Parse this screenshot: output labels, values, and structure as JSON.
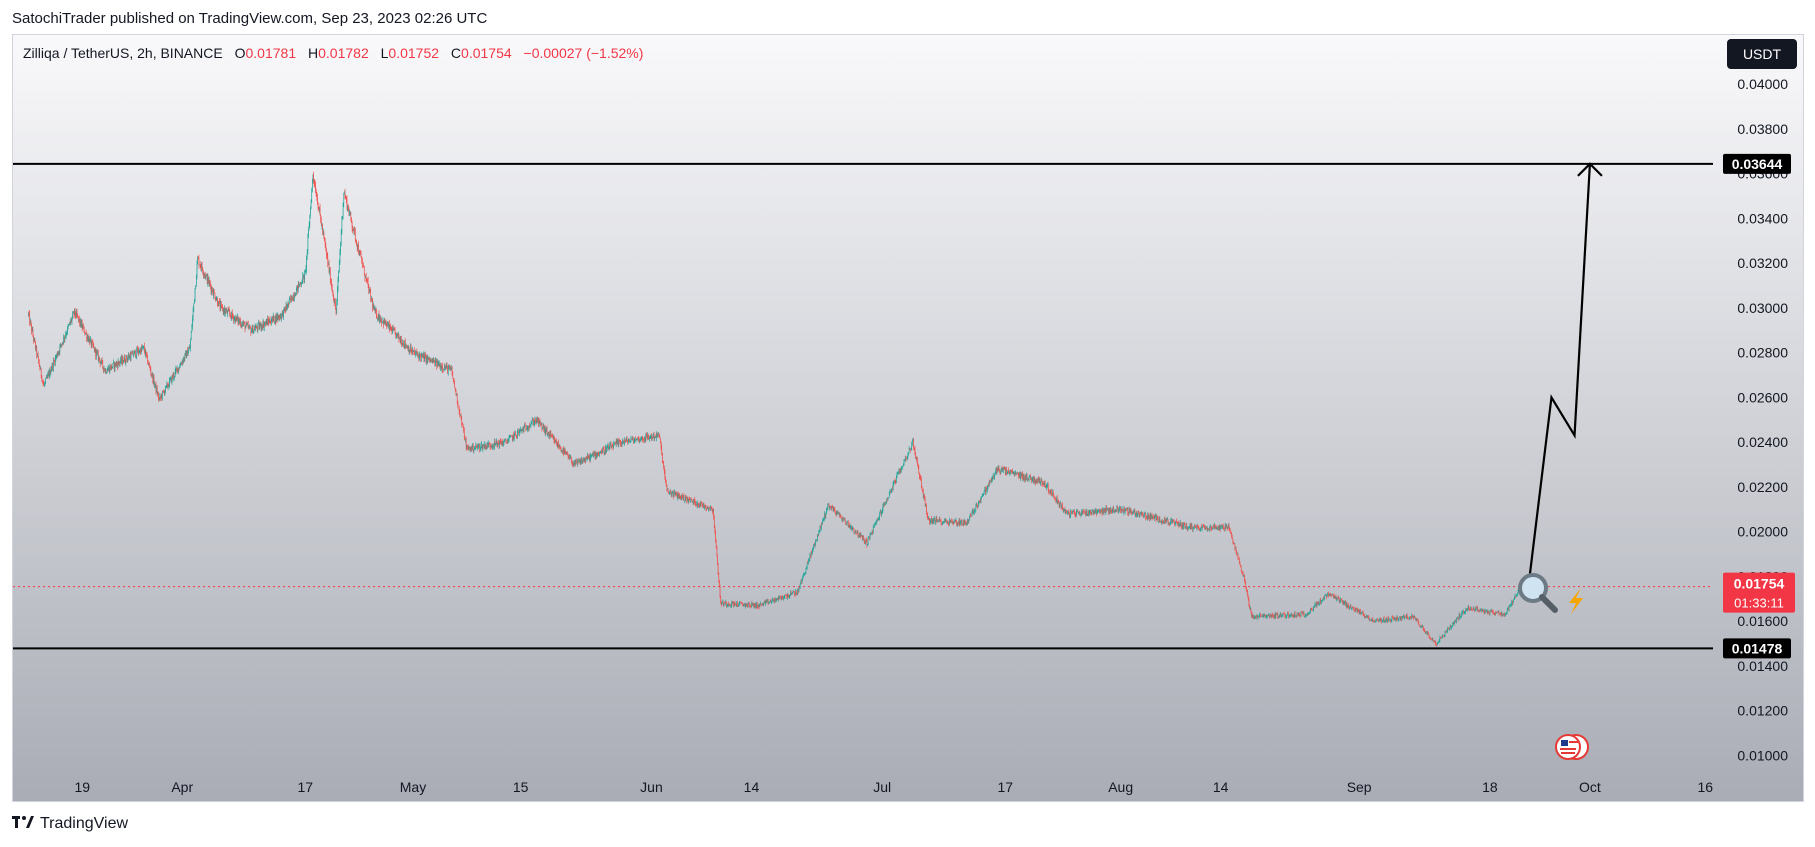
{
  "header": {
    "published_line": "SatochiTrader published on TradingView.com, Sep 23, 2023 02:26 UTC"
  },
  "legend": {
    "symbol": "Zilliqa / TetherUS, 2h, BINANCE",
    "open_label": "O",
    "open": "0.01781",
    "high_label": "H",
    "high": "0.01782",
    "low_label": "L",
    "low": "0.01752",
    "close_label": "C",
    "close": "0.01754",
    "change": "−0.00027 (−1.52%)"
  },
  "currency_button": "USDT",
  "colors": {
    "up": "#26a69a",
    "down": "#ef5350",
    "accent": "#f23645",
    "level_line": "#000000",
    "bg_top": "#f9f9fb",
    "bg_bottom": "#a9acb5"
  },
  "icons": [
    "magnifier-icon",
    "lightning-icon",
    "us-flag-icon"
  ],
  "chart_data": {
    "type": "candlestick",
    "title": "Zilliqa / TetherUS, 2h, BINANCE",
    "ylim": [
      0.0093,
      0.0422
    ],
    "y_ticks": [
      "0.01000",
      "0.01200",
      "0.01400",
      "0.01600",
      "0.01800",
      "0.02000",
      "0.02200",
      "0.02400",
      "0.02600",
      "0.02800",
      "0.03000",
      "0.03200",
      "0.03400",
      "0.03600",
      "0.03800",
      "0.04000"
    ],
    "x_ticks": [
      "19",
      "Apr",
      "17",
      "May",
      "15",
      "Jun",
      "14",
      "Jul",
      "17",
      "Aug",
      "14",
      "Sep",
      "18",
      "Oct",
      "16"
    ],
    "grid": false,
    "price_path": [
      [
        "2023-03-12",
        0.0297
      ],
      [
        "2023-03-14",
        0.0265
      ],
      [
        "2023-03-18",
        0.0298
      ],
      [
        "2023-03-22",
        0.0272
      ],
      [
        "2023-03-27",
        0.0282
      ],
      [
        "2023-03-29",
        0.0259
      ],
      [
        "2023-04-02",
        0.0282
      ],
      [
        "2023-04-03",
        0.0322
      ],
      [
        "2023-04-06",
        0.03
      ],
      [
        "2023-04-10",
        0.029
      ],
      [
        "2023-04-14",
        0.0297
      ],
      [
        "2023-04-17",
        0.0315
      ],
      [
        "2023-04-18",
        0.036
      ],
      [
        "2023-04-21",
        0.0298
      ],
      [
        "2023-04-22",
        0.0352
      ],
      [
        "2023-04-26",
        0.0298
      ],
      [
        "2023-05-01",
        0.028
      ],
      [
        "2023-05-06",
        0.0272
      ],
      [
        "2023-05-08",
        0.0237
      ],
      [
        "2023-05-13",
        0.024
      ],
      [
        "2023-05-17",
        0.025
      ],
      [
        "2023-05-22",
        0.023
      ],
      [
        "2023-05-28",
        0.024
      ],
      [
        "2023-06-02",
        0.0243
      ],
      [
        "2023-06-03",
        0.0218
      ],
      [
        "2023-06-09",
        0.021
      ],
      [
        "2023-06-10",
        0.0168
      ],
      [
        "2023-06-15",
        0.0167
      ],
      [
        "2023-06-20",
        0.0173
      ],
      [
        "2023-06-24",
        0.0212
      ],
      [
        "2023-06-29",
        0.0195
      ],
      [
        "2023-07-03",
        0.0225
      ],
      [
        "2023-07-05",
        0.024
      ],
      [
        "2023-07-07",
        0.0205
      ],
      [
        "2023-07-12",
        0.0204
      ],
      [
        "2023-07-16",
        0.0228
      ],
      [
        "2023-07-22",
        0.0222
      ],
      [
        "2023-07-25",
        0.0208
      ],
      [
        "2023-08-01",
        0.021
      ],
      [
        "2023-08-10",
        0.0202
      ],
      [
        "2023-08-15",
        0.0202
      ],
      [
        "2023-08-17",
        0.018
      ],
      [
        "2023-08-18",
        0.0162
      ],
      [
        "2023-08-25",
        0.0163
      ],
      [
        "2023-08-28",
        0.0172
      ],
      [
        "2023-09-03",
        0.016
      ],
      [
        "2023-09-08",
        0.0162
      ],
      [
        "2023-09-11",
        0.015
      ],
      [
        "2023-09-15",
        0.0166
      ],
      [
        "2023-09-20",
        0.0163
      ],
      [
        "2023-09-22",
        0.0175
      ],
      [
        "2023-09-23",
        0.01754
      ]
    ],
    "horizontal_levels": [
      {
        "price": 0.03644,
        "label": "0.03644"
      },
      {
        "price": 0.01478,
        "label": "0.01478"
      }
    ],
    "last_price": {
      "price": 0.01754,
      "label": "0.01754",
      "countdown": "01:33:11"
    },
    "projection": [
      [
        "2023-09-23",
        0.01754
      ],
      [
        "2023-09-26",
        0.026
      ],
      [
        "2023-09-29",
        0.0243
      ],
      [
        "2023-10-01",
        0.03644
      ]
    ]
  }
}
